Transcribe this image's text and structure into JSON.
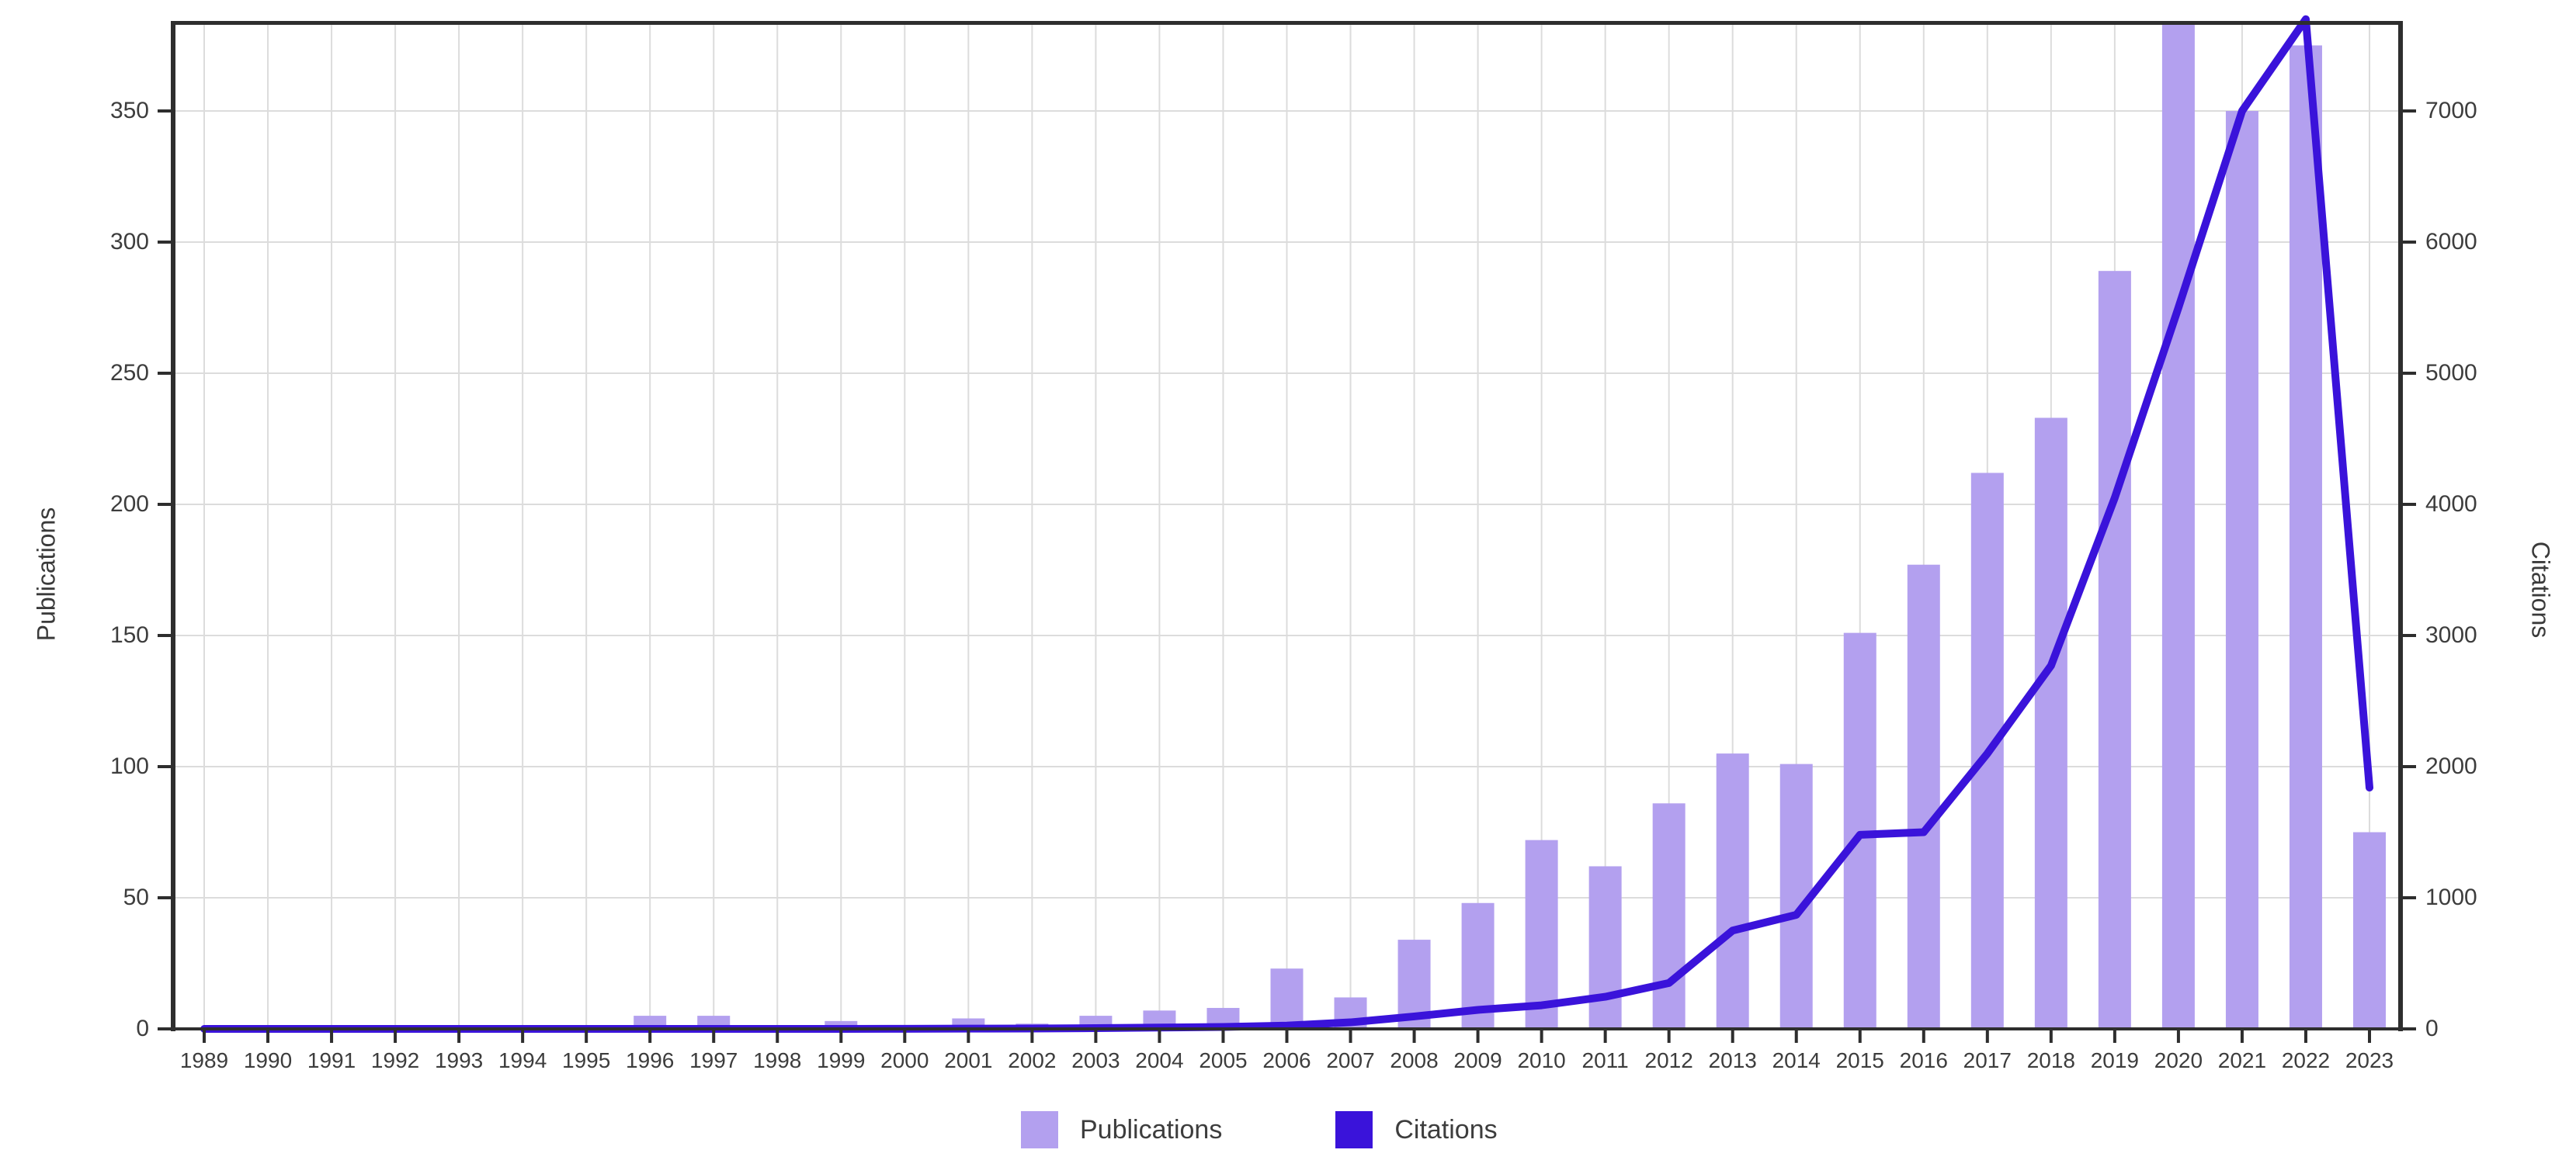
{
  "chart_data": {
    "type": "bar+line",
    "title": "",
    "categories": [
      1989,
      1990,
      1991,
      1992,
      1993,
      1994,
      1995,
      1996,
      1997,
      1998,
      1999,
      2000,
      2001,
      2002,
      2003,
      2004,
      2005,
      2006,
      2007,
      2008,
      2009,
      2010,
      2011,
      2012,
      2013,
      2014,
      2015,
      2016,
      2017,
      2018,
      2019,
      2020,
      2021,
      2022,
      2023
    ],
    "series": [
      {
        "name": "Publications",
        "type": "bar",
        "axis": "left",
        "color": "#b3a0ef",
        "values": [
          0,
          0,
          0,
          0,
          0,
          0,
          0,
          5,
          5,
          0,
          3,
          0,
          4,
          2,
          5,
          7,
          8,
          23,
          12,
          34,
          48,
          72,
          62,
          86,
          105,
          101,
          151,
          177,
          212,
          233,
          289,
          385,
          350,
          375,
          75
        ]
      },
      {
        "name": "Citations",
        "type": "line",
        "axis": "right",
        "color": "#3a13da",
        "values": [
          0,
          0,
          0,
          0,
          0,
          0,
          0,
          0,
          0,
          0,
          0,
          1,
          2,
          3,
          6,
          10,
          15,
          25,
          50,
          95,
          145,
          180,
          245,
          350,
          750,
          870,
          1480,
          1500,
          2100,
          2770,
          4050,
          5500,
          7000,
          7700,
          1840
        ]
      }
    ],
    "left_axis": {
      "label": "Publications",
      "ticks": [
        0,
        50,
        100,
        150,
        200,
        250,
        300,
        350
      ],
      "range": [
        0,
        383
      ]
    },
    "right_axis": {
      "label": "Citations",
      "ticks": [
        0,
        1000,
        2000,
        3000,
        4000,
        5000,
        6000,
        7000
      ],
      "range": [
        0,
        7670
      ]
    },
    "grid": true,
    "legend_position": "bottom",
    "colors": {
      "grid": "#dcdcdc",
      "axis": "#2e2e2e",
      "tick_text": "#3d3d3d",
      "background": "#ffffff"
    }
  },
  "legend": {
    "publications_label": "Publications",
    "citations_label": "Citations"
  }
}
